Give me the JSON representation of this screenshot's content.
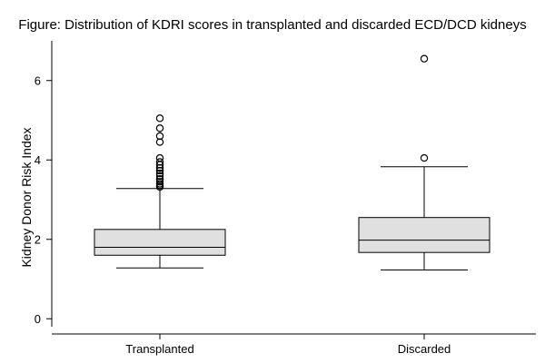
{
  "chart_data": {
    "type": "box",
    "title": "Figure: Distribution of KDRI scores in transplanted and discarded ECD/DCD kidneys",
    "xlabel": "",
    "ylabel": "Kidney Donor Risk Index",
    "ylim": [
      -0.2,
      7.0
    ],
    "yticks": [
      0,
      2,
      4,
      6
    ],
    "categories": [
      "Transplanted",
      "Discarded"
    ],
    "grid": false,
    "box_fill": "#e0e0e0",
    "stroke_color": "#000000",
    "boxes": [
      {
        "category": "Transplanted",
        "whisker_low": 1.28,
        "q1": 1.6,
        "median": 1.8,
        "q3": 2.25,
        "whisker_high": 3.28,
        "outliers": [
          3.32,
          3.36,
          3.4,
          3.45,
          3.52,
          3.6,
          3.66,
          3.73,
          3.8,
          3.88,
          3.95,
          4.05,
          4.45,
          4.6,
          4.8,
          5.05
        ]
      },
      {
        "category": "Discarded",
        "whisker_low": 1.23,
        "q1": 1.67,
        "median": 1.98,
        "q3": 2.55,
        "whisker_high": 3.83,
        "outliers": [
          4.05,
          6.55
        ]
      }
    ]
  }
}
